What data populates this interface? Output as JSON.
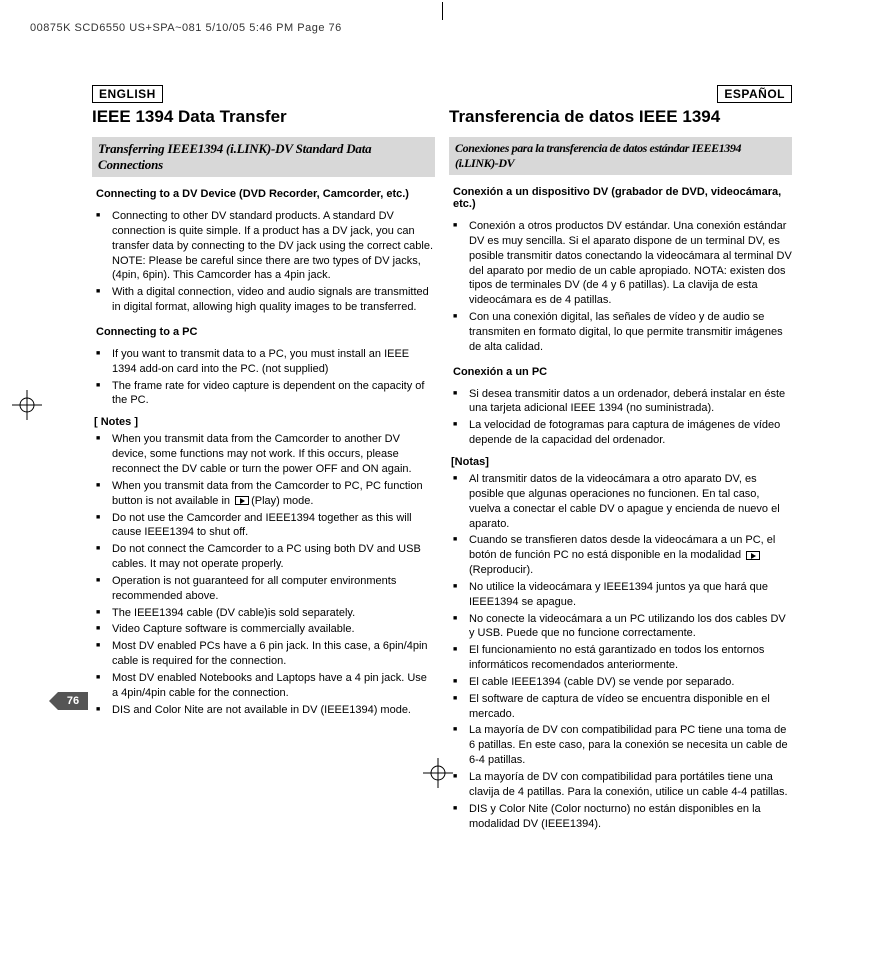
{
  "print_header": "00875K SCD6550 US+SPA~081  5/10/05 5:46 PM  Page 76",
  "page_number": "76",
  "en": {
    "lang_label": "ENGLISH",
    "title": "IEEE 1394 Data Transfer",
    "banner": "Transferring IEEE1394 (i.LINK)-DV Standard Data Connections",
    "sub1": "Connecting to a DV Device (DVD Recorder, Camcorder, etc.)",
    "list1": [
      "Connecting to other DV standard products. A standard DV connection is quite simple. If a product has a DV jack, you can transfer data by connecting to the DV jack using the correct cable. NOTE: Please be careful since there are two types of DV jacks, (4pin, 6pin). This Camcorder has a 4pin jack.",
      "With a digital connection, video and audio signals are transmitted in digital format, allowing high quality images to be transferred."
    ],
    "sub2": "Connecting to a PC",
    "list2": [
      "If you want to transmit data to a PC, you must install an IEEE 1394 add-on card into the PC. (not supplied)",
      "The frame rate for video capture is dependent on the capacity of the PC."
    ],
    "notes_label": "[ Notes ]",
    "notes": [
      "When you transmit data from the Camcorder to another DV device, some functions may not work. If this occurs, please reconnect the DV cable or turn the power OFF and ON again.",
      "When you transmit data from the Camcorder to PC, PC function button is not available in {PLAY}(Play) mode.",
      "Do not use the Camcorder and IEEE1394 together as this will cause IEEE1394 to shut off.",
      "Do not connect the Camcorder to a PC using both DV and USB cables. It may not operate properly.",
      "Operation is not guaranteed for all computer environments recommended above.",
      "The IEEE1394 cable (DV cable)is sold separately.",
      "Video Capture software is commercially available.",
      "Most DV enabled PCs have a 6 pin jack. In this case, a 6pin/4pin cable is required for the connection.",
      "Most DV enabled Notebooks and Laptops have a 4 pin jack. Use a 4pin/4pin cable for the connection.",
      "DIS and Color Nite are not available in DV (IEEE1394) mode."
    ]
  },
  "es": {
    "lang_label": "ESPAÑOL",
    "title": "Transferencia de datos IEEE 1394",
    "banner": "Conexiones para la transferencia de datos estándar IEEE1394 (i.LINK)-DV",
    "sub1": "Conexión a un dispositivo DV (grabador de DVD, videocámara, etc.)",
    "list1": [
      "Conexión a otros productos DV estándar. Una conexión estándar DV es muy sencilla. Si el aparato dispone de un terminal DV, es posible transmitir datos conectando la videocámara al terminal DV del aparato por medio de un cable apropiado. NOTA: existen dos tipos de terminales DV (de 4 y 6 patillas). La clavija de esta videocámara es de 4 patillas.",
      "Con una conexión digital, las señales de vídeo y de audio se transmiten en formato digital, lo que permite transmitir imágenes de alta calidad."
    ],
    "sub2": "Conexión a un PC",
    "list2": [
      "Si desea transmitir datos a un ordenador, deberá instalar en éste una tarjeta adicional IEEE 1394 (no suministrada).",
      "La velocidad de fotogramas para captura de imágenes de vídeo depende de la capacidad del ordenador."
    ],
    "notes_label": "[Notas]",
    "notes": [
      "Al transmitir datos de la videocámara a otro aparato DV, es posible que algunas operaciones no funcionen. En tal caso, vuelva a conectar el cable DV o apague y encienda de nuevo el aparato.",
      "Cuando se transfieren datos desde la videocámara a un PC, el botón de función PC no está disponible en la modalidad {PLAY}(Reproducir).",
      "No utilice la videocámara y IEEE1394 juntos ya que hará que IEEE1394 se apague.",
      "No conecte la videocámara a un PC utilizando los dos cables DV y USB. Puede que no funcione correctamente.",
      "El funcionamiento no está garantizado en todos los entornos informáticos recomendados anteriormente.",
      "El cable IEEE1394 (cable DV) se vende por separado.",
      "El software de captura de vídeo se encuentra disponible en el mercado.",
      "La mayoría de DV con compatibilidad para PC tiene una toma de 6 patillas. En este caso, para la conexión se necesita un cable de 6-4 patillas.",
      "La mayoría de DV con compatibilidad para portátiles tiene una clavija de 4 patillas. Para la conexión, utilice un cable 4-4 patillas.",
      "DIS y Color Nite (Color nocturno) no están disponibles en la modalidad DV (IEEE1394)."
    ]
  },
  "colors": {
    "banner_bg": "#d8d8d8",
    "text": "#000000",
    "page_tab_bg": "#555555"
  }
}
